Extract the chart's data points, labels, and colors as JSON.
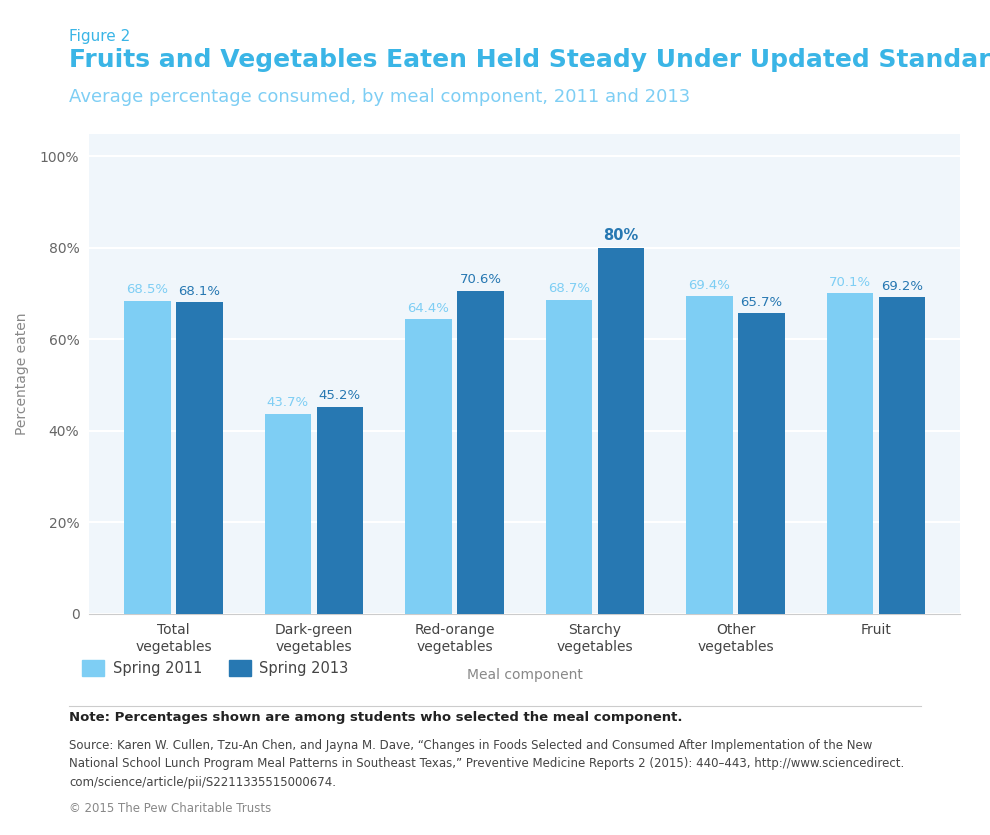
{
  "figure2_label": "Figure 2",
  "title": "Fruits and Vegetables Eaten Held Steady Under Updated Standards",
  "subtitle": "Average percentage consumed, by meal component, 2011 and 2013",
  "categories": [
    "Total\nvegetables",
    "Dark-green\nvegetables",
    "Red-orange\nvegetables",
    "Starchy\nvegetables",
    "Other\nvegetables",
    "Fruit"
  ],
  "spring2011": [
    68.5,
    43.7,
    64.4,
    68.7,
    69.4,
    70.1
  ],
  "spring2013": [
    68.1,
    45.2,
    70.6,
    80.0,
    65.7,
    69.2
  ],
  "spring2013_labels": [
    "68.1%",
    "45.2%",
    "70.6%",
    "80%",
    "65.7%",
    "69.2%"
  ],
  "spring2011_labels": [
    "68.5%",
    "43.7%",
    "64.4%",
    "68.7%",
    "69.4%",
    "70.1%"
  ],
  "color_2011": "#7ECEF4",
  "color_2013": "#2778B2",
  "ylabel": "Percentage eaten",
  "xlabel": "Meal component",
  "ylim": [
    0,
    105
  ],
  "yticks": [
    0,
    20,
    40,
    60,
    80,
    100
  ],
  "ytick_labels": [
    "0",
    "20%",
    "40%",
    "60%",
    "80%",
    "100%"
  ],
  "legend_2011": "Spring 2011",
  "legend_2013": "Spring 2013",
  "note": "Note: Percentages shown are among students who selected the meal component.",
  "source_plain1": "Source: Karen W. Cullen, Tzu-An Chen, and Jayna M. Dave, “Changes in Foods Selected and Consumed After Implementation of the New",
  "source_plain2": "National School Lunch Program Meal Patterns in Southeast Texas,” ",
  "source_italic": "Preventive Medicine Reports",
  "source_plain3": " 2 (2015): 440–443, http://www.sciencedirect.",
  "source_plain4": "com/science/article/pii/S2211335515000674.",
  "copyright": "© 2015 The Pew Charitable Trusts",
  "bg_color": "#f0f6fb",
  "title_color": "#3ab5e6",
  "figure2_color": "#3ab5e6",
  "subtitle_color": "#7ECEF4",
  "annotation_color_2011": "#7ECEF4",
  "annotation_color_2013": "#2778B2",
  "annotation_bold_2013": [
    false,
    false,
    false,
    true,
    false,
    false
  ]
}
